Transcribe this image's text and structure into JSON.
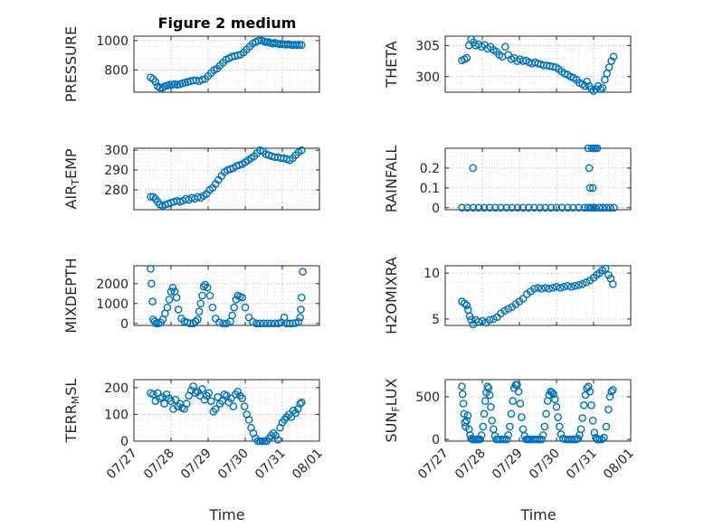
{
  "figure": {
    "title": "Figure 2 medium",
    "marker_color": "#0072bd",
    "x_tick_labels": [
      "07/27",
      "07/28",
      "07/29",
      "07/30",
      "07/31",
      "08/01"
    ],
    "x_label": "Time"
  },
  "chart_data": [
    {
      "type": "scatter",
      "title": "Figure 2 medium",
      "ylabel": "PRESSURE",
      "xlim": [
        0,
        5
      ],
      "ylim": [
        650,
        1030
      ],
      "yticks": [
        800,
        1000
      ],
      "grid": true,
      "minor_grid": true,
      "x": [
        0.45,
        0.52,
        0.58,
        0.64,
        0.7,
        0.77,
        0.83,
        0.9,
        0.96,
        1.03,
        1.1,
        1.17,
        1.24,
        1.31,
        1.38,
        1.45,
        1.52,
        1.6,
        1.68,
        1.76,
        1.84,
        1.92,
        2.0,
        2.08,
        2.16,
        2.24,
        2.32,
        2.4,
        2.48,
        2.56,
        2.64,
        2.72,
        2.8,
        2.88,
        2.96,
        3.04,
        3.12,
        3.2,
        3.28,
        3.36,
        3.44,
        3.5,
        3.56,
        3.62,
        3.68,
        3.74,
        3.8,
        3.86,
        3.92,
        3.98,
        4.04,
        4.1,
        4.16,
        4.22,
        4.28,
        4.34,
        4.4,
        4.46,
        4.52
      ],
      "y": [
        750,
        740,
        720,
        690,
        680,
        680,
        690,
        695,
        700,
        700,
        705,
        700,
        705,
        710,
        715,
        720,
        725,
        730,
        730,
        725,
        735,
        740,
        760,
        780,
        800,
        810,
        830,
        850,
        870,
        880,
        890,
        895,
        900,
        905,
        920,
        940,
        960,
        980,
        990,
        1000,
        1000,
        995,
        990,
        990,
        985,
        980,
        985,
        980,
        975,
        978,
        975,
        972,
        975,
        973,
        970,
        972,
        970,
        972,
        970
      ]
    },
    {
      "type": "scatter",
      "ylabel": "THETA",
      "xlim": [
        0,
        5
      ],
      "ylim": [
        297.5,
        306.5
      ],
      "yticks": [
        300,
        305
      ],
      "grid": true,
      "minor_grid": true,
      "x": [
        0.45,
        0.52,
        0.58,
        0.64,
        0.7,
        0.76,
        0.82,
        0.9,
        0.98,
        1.06,
        1.14,
        1.22,
        1.3,
        1.38,
        1.46,
        1.54,
        1.62,
        1.7,
        1.78,
        1.86,
        1.94,
        2.02,
        2.1,
        2.18,
        2.26,
        2.34,
        2.42,
        2.5,
        2.58,
        2.66,
        2.74,
        2.82,
        2.9,
        2.98,
        3.06,
        3.14,
        3.22,
        3.3,
        3.38,
        3.46,
        3.54,
        3.62,
        3.7,
        3.76,
        3.82,
        3.88,
        3.94,
        4.0,
        4.06,
        4.12,
        4.18,
        4.24,
        4.3,
        4.36,
        4.42,
        4.48,
        4.54
      ],
      "y": [
        302.6,
        302.8,
        303.0,
        305.0,
        306.0,
        305.5,
        305.0,
        305.2,
        304.8,
        305.1,
        304.5,
        304.8,
        304.3,
        304.0,
        303.5,
        303.2,
        304.8,
        303.5,
        302.8,
        303.0,
        302.5,
        302.8,
        302.5,
        302.6,
        302.3,
        302.1,
        302.3,
        302.1,
        302.0,
        301.8,
        301.8,
        301.7,
        301.6,
        301.5,
        301.2,
        300.8,
        300.5,
        300.3,
        300.0,
        299.8,
        299.5,
        299.0,
        298.8,
        298.5,
        299.2,
        298.5,
        298.0,
        297.7,
        298.0,
        298.5,
        298.0,
        298.2,
        299.5,
        300.5,
        301.5,
        302.5,
        303.2
      ]
    },
    {
      "type": "scatter",
      "ylabel": "AIR_TEMP",
      "xlim": [
        0,
        5
      ],
      "ylim": [
        270,
        301
      ],
      "yticks": [
        280,
        290,
        300
      ],
      "grid": true,
      "minor_grid": true,
      "x": [
        0.45,
        0.52,
        0.58,
        0.64,
        0.7,
        0.77,
        0.84,
        0.92,
        1.0,
        1.08,
        1.16,
        1.24,
        1.32,
        1.4,
        1.48,
        1.56,
        1.64,
        1.72,
        1.8,
        1.88,
        1.96,
        2.04,
        2.12,
        2.2,
        2.28,
        2.36,
        2.44,
        2.52,
        2.6,
        2.68,
        2.76,
        2.84,
        2.92,
        3.0,
        3.08,
        3.16,
        3.24,
        3.32,
        3.4,
        3.48,
        3.56,
        3.64,
        3.72,
        3.8,
        3.88,
        3.96,
        4.04,
        4.12,
        4.2,
        4.28,
        4.36,
        4.44,
        4.52
      ],
      "y": [
        276.5,
        276.5,
        275.5,
        274.0,
        272.5,
        272.0,
        272.5,
        273.0,
        273.5,
        274.0,
        274.5,
        274.0,
        274.5,
        275.5,
        275.0,
        276.0,
        275.5,
        276.5,
        276.0,
        277.0,
        278.0,
        280.0,
        281.0,
        283.0,
        285.0,
        287.0,
        289.0,
        290.0,
        290.5,
        291.0,
        292.0,
        292.5,
        293.0,
        294.0,
        295.0,
        296.0,
        297.0,
        298.5,
        300.0,
        299.5,
        298.0,
        297.5,
        297.0,
        296.5,
        296.5,
        296.0,
        296.0,
        295.5,
        295.0,
        296.0,
        297.5,
        299.0,
        300.0
      ]
    },
    {
      "type": "scatter",
      "ylabel": "RAINFALL",
      "xlim": [
        0,
        5
      ],
      "ylim": [
        -0.01,
        0.3
      ],
      "yticks": [
        0,
        0.1,
        0.2
      ],
      "grid": true,
      "minor_grid": true,
      "x": [
        0.45,
        0.6,
        0.75,
        0.9,
        1.05,
        1.2,
        1.35,
        1.5,
        1.65,
        1.8,
        1.95,
        2.1,
        2.25,
        2.4,
        2.55,
        2.7,
        2.85,
        3.0,
        3.15,
        3.3,
        3.45,
        3.6,
        3.75,
        3.85,
        3.9,
        3.95,
        4.0,
        4.05,
        4.15,
        4.25,
        4.35,
        4.45,
        4.55,
        0.75,
        3.85,
        3.88,
        3.9,
        3.95,
        4.0,
        3.98,
        4.05,
        4.1
      ],
      "y": [
        0,
        0,
        0,
        0,
        0,
        0,
        0,
        0,
        0,
        0,
        0,
        0,
        0,
        0,
        0,
        0,
        0,
        0,
        0,
        0,
        0,
        0,
        0,
        0,
        0,
        0,
        0,
        0,
        0,
        0,
        0,
        0,
        0,
        0.2,
        0.3,
        0.2,
        0.1,
        0.3,
        0.3,
        0.1,
        0.3,
        0.3
      ]
    },
    {
      "type": "scatter",
      "ylabel": "MIXDEPTH",
      "xlim": [
        0,
        5
      ],
      "ylim": [
        -100,
        2900
      ],
      "yticks": [
        0,
        1000,
        2000
      ],
      "grid": true,
      "minor_grid": true,
      "x": [
        0.45,
        0.47,
        0.5,
        0.52,
        0.56,
        0.6,
        0.66,
        0.72,
        0.78,
        0.84,
        0.9,
        0.95,
        1.0,
        1.05,
        1.1,
        1.15,
        1.2,
        1.28,
        1.36,
        1.44,
        1.52,
        1.6,
        1.66,
        1.72,
        1.76,
        1.8,
        1.84,
        1.88,
        1.92,
        1.98,
        2.05,
        2.12,
        2.2,
        2.3,
        2.4,
        2.5,
        2.6,
        2.65,
        2.7,
        2.75,
        2.8,
        2.86,
        2.92,
        3.0,
        3.1,
        3.2,
        3.3,
        3.4,
        3.5,
        3.6,
        3.7,
        3.8,
        3.9,
        3.98,
        4.05,
        4.12,
        4.2,
        4.28,
        4.36,
        4.44,
        4.48,
        4.5,
        4.52,
        4.55
      ],
      "y": [
        2750,
        2000,
        1100,
        200,
        100,
        0,
        0,
        50,
        200,
        500,
        800,
        1200,
        1600,
        1800,
        1600,
        1300,
        700,
        250,
        100,
        50,
        0,
        0,
        100,
        200,
        600,
        1000,
        1400,
        1850,
        1950,
        1800,
        1400,
        800,
        250,
        50,
        0,
        0,
        100,
        400,
        800,
        1200,
        1400,
        1350,
        1300,
        800,
        300,
        80,
        0,
        0,
        0,
        0,
        0,
        0,
        0,
        50,
        300,
        0,
        0,
        0,
        20,
        80,
        300,
        700,
        1300,
        2600
      ]
    },
    {
      "type": "scatter",
      "ylabel": "H2OMIXRA",
      "xlim": [
        0,
        5
      ],
      "ylim": [
        4.3,
        10.8
      ],
      "yticks": [
        5,
        10
      ],
      "grid": true,
      "minor_grid": true,
      "x": [
        0.45,
        0.52,
        0.58,
        0.62,
        0.66,
        0.7,
        0.75,
        0.82,
        0.9,
        1.0,
        1.1,
        1.2,
        1.3,
        1.4,
        1.5,
        1.6,
        1.7,
        1.8,
        1.9,
        2.0,
        2.1,
        2.2,
        2.3,
        2.4,
        2.5,
        2.6,
        2.7,
        2.8,
        2.9,
        3.0,
        3.1,
        3.2,
        3.3,
        3.4,
        3.5,
        3.6,
        3.7,
        3.8,
        3.9,
        4.0,
        4.08,
        4.16,
        4.24,
        4.32,
        4.4,
        4.46,
        4.52
      ],
      "y": [
        6.9,
        6.7,
        6.5,
        6.0,
        5.3,
        4.9,
        4.4,
        4.9,
        4.7,
        4.8,
        4.6,
        4.9,
        5.0,
        5.2,
        5.6,
        5.9,
        6.1,
        6.3,
        6.6,
        6.9,
        7.2,
        7.7,
        8.0,
        8.3,
        8.4,
        8.3,
        8.4,
        8.3,
        8.4,
        8.5,
        8.4,
        8.5,
        8.6,
        8.5,
        8.6,
        8.7,
        8.8,
        9.0,
        9.2,
        9.5,
        9.8,
        10.0,
        10.3,
        10.5,
        9.8,
        9.4,
        8.8
      ]
    },
    {
      "type": "scatter",
      "ylabel": "TERR_MSL",
      "xlim": [
        0,
        5
      ],
      "ylim": [
        0,
        230
      ],
      "yticks": [
        0,
        100,
        200
      ],
      "grid": true,
      "minor_grid": true,
      "x": [
        0.45,
        0.52,
        0.58,
        0.64,
        0.7,
        0.76,
        0.82,
        0.88,
        0.94,
        1.0,
        1.06,
        1.12,
        1.18,
        1.24,
        1.3,
        1.36,
        1.42,
        1.48,
        1.54,
        1.6,
        1.66,
        1.72,
        1.78,
        1.84,
        1.9,
        1.96,
        2.02,
        2.08,
        2.14,
        2.2,
        2.26,
        2.32,
        2.38,
        2.44,
        2.5,
        2.56,
        2.62,
        2.68,
        2.74,
        2.8,
        2.86,
        2.92,
        2.98,
        3.04,
        3.1,
        3.16,
        3.22,
        3.28,
        3.34,
        3.4,
        3.46,
        3.52,
        3.58,
        3.64,
        3.7,
        3.76,
        3.82,
        3.88,
        3.94,
        4.0,
        4.06,
        4.12,
        4.18,
        4.24,
        4.3,
        4.36,
        4.42,
        4.48,
        4.52
      ],
      "y": [
        180,
        175,
        150,
        180,
        160,
        165,
        140,
        175,
        160,
        150,
        120,
        155,
        130,
        140,
        125,
        120,
        140,
        170,
        190,
        205,
        180,
        185,
        170,
        195,
        155,
        170,
        180,
        150,
        110,
        120,
        165,
        140,
        150,
        175,
        170,
        145,
        160,
        130,
        175,
        185,
        170,
        160,
        130,
        100,
        80,
        50,
        30,
        10,
        0,
        0,
        0,
        0,
        0,
        10,
        20,
        30,
        20,
        5,
        50,
        70,
        80,
        90,
        100,
        90,
        115,
        105,
        120,
        140,
        145
      ]
    },
    {
      "type": "scatter",
      "ylabel": "SUN_FLUX",
      "xlim": [
        0,
        5
      ],
      "ylim": [
        -20,
        700
      ],
      "yticks": [
        0,
        500
      ],
      "grid": true,
      "minor_grid": true,
      "x": [
        0.45,
        0.47,
        0.49,
        0.51,
        0.53,
        0.55,
        0.58,
        0.61,
        0.64,
        0.67,
        0.7,
        0.74,
        0.78,
        0.82,
        0.86,
        0.9,
        0.94,
        0.98,
        1.02,
        1.05,
        1.08,
        1.11,
        1.14,
        1.17,
        1.2,
        1.23,
        1.26,
        1.3,
        1.34,
        1.38,
        1.42,
        1.48,
        1.54,
        1.6,
        1.66,
        1.7,
        1.74,
        1.78,
        1.82,
        1.86,
        1.9,
        1.94,
        1.98,
        2.02,
        2.06,
        2.1,
        2.14,
        2.18,
        2.22,
        2.26,
        2.3,
        2.36,
        2.42,
        2.48,
        2.54,
        2.6,
        2.64,
        2.68,
        2.72,
        2.76,
        2.8,
        2.84,
        2.88,
        2.92,
        2.96,
        3.0,
        3.04,
        3.08,
        3.12,
        3.18,
        3.24,
        3.3,
        3.36,
        3.42,
        3.48,
        3.54,
        3.58,
        3.62,
        3.66,
        3.7,
        3.74,
        3.78,
        3.82,
        3.86,
        3.9,
        3.94,
        3.98,
        4.02,
        4.06,
        4.1,
        4.16,
        4.22,
        4.28,
        4.34,
        4.4,
        4.44,
        4.48,
        4.52
      ],
      "y": [
        620,
        530,
        420,
        300,
        200,
        150,
        220,
        280,
        120,
        50,
        10,
        0,
        0,
        0,
        0,
        0,
        0,
        50,
        150,
        300,
        450,
        550,
        620,
        600,
        520,
        380,
        220,
        120,
        40,
        0,
        0,
        0,
        0,
        0,
        0,
        50,
        150,
        300,
        450,
        600,
        640,
        640,
        560,
        420,
        260,
        120,
        40,
        0,
        0,
        0,
        0,
        0,
        0,
        0,
        0,
        0,
        50,
        150,
        300,
        450,
        520,
        560,
        550,
        530,
        470,
        380,
        260,
        150,
        60,
        10,
        0,
        0,
        0,
        0,
        0,
        0,
        10,
        50,
        120,
        250,
        400,
        520,
        600,
        620,
        560,
        400,
        220,
        80,
        20,
        0,
        0,
        0,
        20,
        150,
        350,
        500,
        560,
        580
      ]
    }
  ]
}
